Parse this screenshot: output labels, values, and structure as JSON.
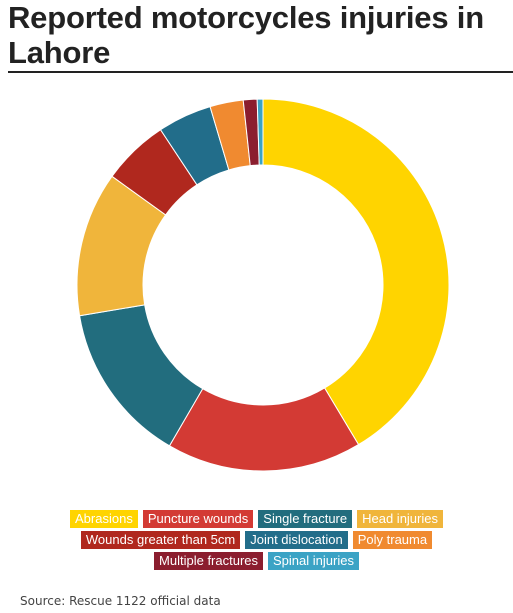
{
  "title": "Reported motorcycles injuries in Lahore",
  "source": "Source: Rescue 1122 official data",
  "chart_data": {
    "type": "pie",
    "donut": true,
    "categories": [
      "Abrasions",
      "Puncture wounds",
      "Single fracture",
      "Head injuries",
      "Wounds greater than 5cm",
      "Joint dislocation",
      "Poly trauma",
      "Multiple fractures",
      "Spinal injuries"
    ],
    "values": [
      41.5,
      17.0,
      14.0,
      12.6,
      5.8,
      4.7,
      2.9,
      1.2,
      0.5
    ],
    "colors": [
      "#FFD400",
      "#D33A34",
      "#226D7E",
      "#F0B53B",
      "#B0281E",
      "#226D8A",
      "#F08A30",
      "#8B1E2F",
      "#3BA3C5"
    ],
    "legend_rows": [
      [
        0,
        1,
        2,
        3
      ],
      [
        4,
        5,
        6
      ],
      [
        7,
        8
      ]
    ],
    "legend_placement": "bottom"
  }
}
